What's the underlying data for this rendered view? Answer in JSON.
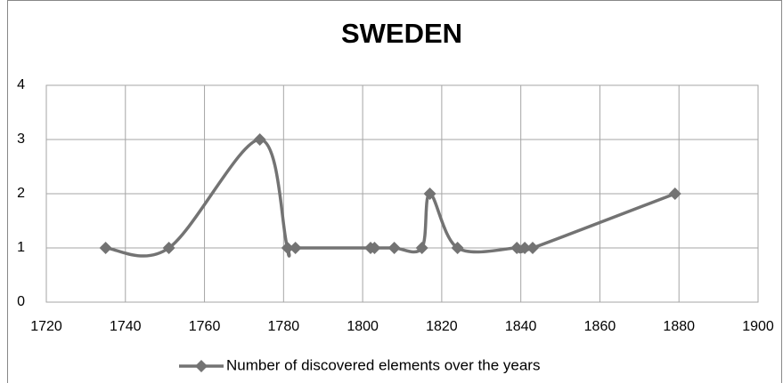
{
  "chart_data": {
    "type": "line",
    "smooth": true,
    "title": "SWEDEN",
    "x": [
      1735,
      1751,
      1774,
      1781,
      1783,
      1802,
      1803,
      1808,
      1815,
      1817,
      1824,
      1839,
      1841,
      1843,
      1879
    ],
    "series": [
      {
        "name": "Number of discovered elements over the years",
        "color": "#737373",
        "values": [
          1,
          1,
          3,
          1,
          1,
          1,
          1,
          1,
          1,
          2,
          1,
          1,
          1,
          1,
          2
        ]
      }
    ],
    "xlim": [
      1720,
      1900
    ],
    "xticks": [
      1720,
      1740,
      1760,
      1780,
      1800,
      1820,
      1840,
      1860,
      1880,
      1900
    ],
    "ylim": [
      0,
      4
    ],
    "yticks": [
      0,
      1,
      2,
      3,
      4
    ],
    "grid": true,
    "legend": "bottom"
  }
}
